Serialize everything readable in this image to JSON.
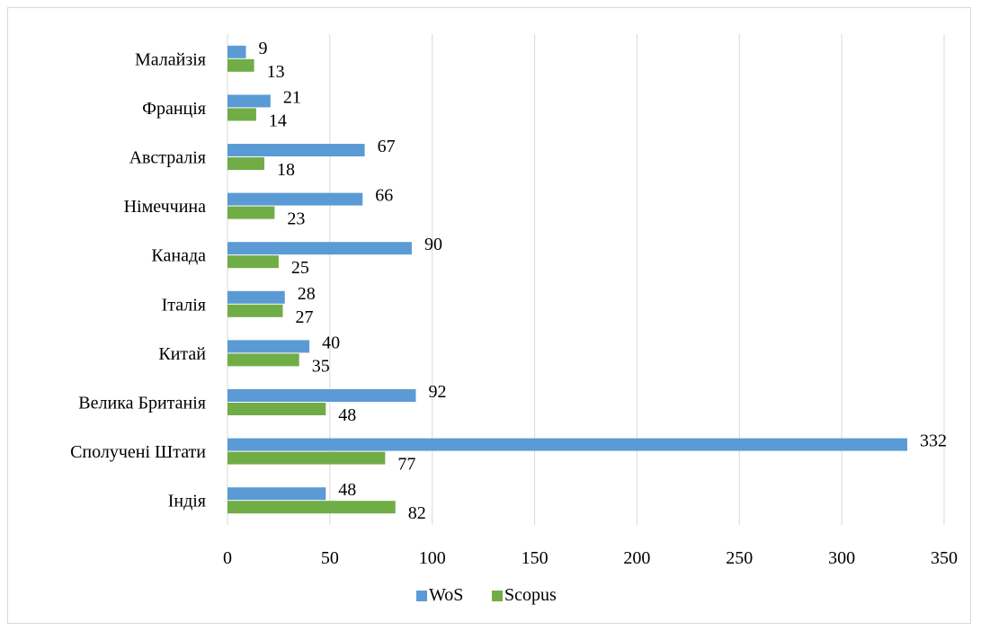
{
  "chart_data": {
    "type": "bar",
    "orientation": "horizontal",
    "categories": [
      "Індія",
      "Сполучені Штати",
      "Велика Британія",
      "Китай",
      "Італія",
      "Канада",
      "Німеччина",
      "Австралія",
      "Франція",
      "Малайзія"
    ],
    "series": [
      {
        "name": "WoS",
        "color": "#5b9bd5",
        "values": [
          48,
          332,
          92,
          40,
          28,
          90,
          66,
          67,
          21,
          9
        ]
      },
      {
        "name": "Scopus",
        "color": "#70ad47",
        "values": [
          82,
          77,
          48,
          35,
          27,
          25,
          23,
          18,
          14,
          13
        ]
      }
    ],
    "xlim": [
      0,
      350
    ],
    "xticks": [
      "0",
      "50",
      "100",
      "150",
      "200",
      "250",
      "300",
      "350"
    ],
    "grid": "vertical",
    "legend_position": "bottom",
    "gridline_color": "#d9d9d9"
  }
}
